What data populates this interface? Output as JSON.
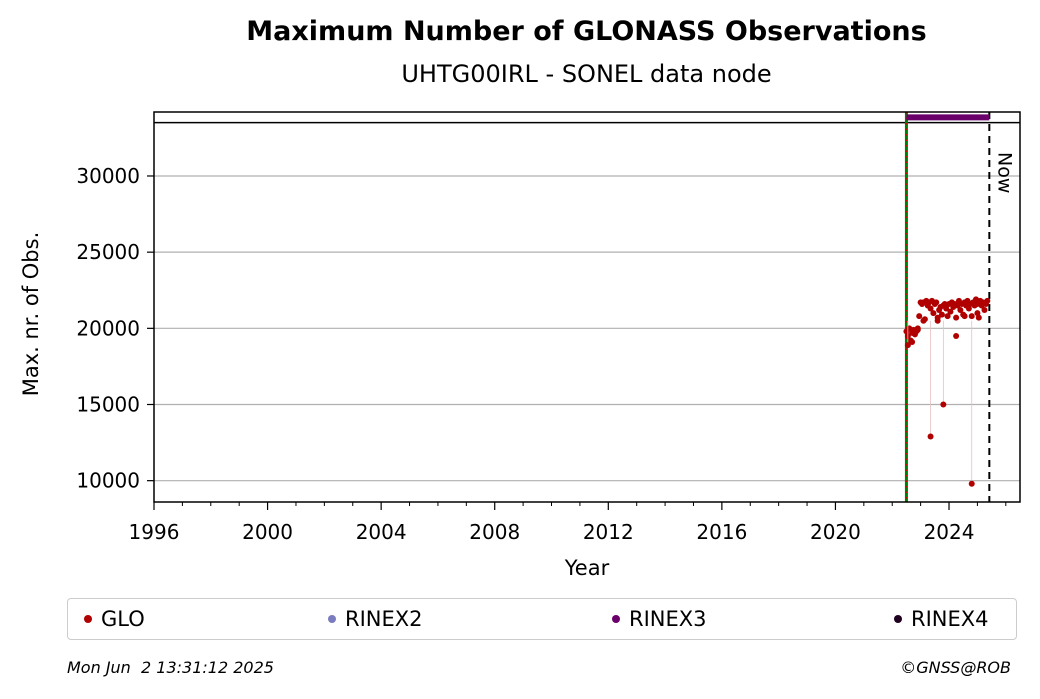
{
  "chart_data": {
    "type": "scatter",
    "title": "Maximum Number of GLONASS Observations",
    "subtitle": "UHTG00IRL - SONEL data node",
    "xlabel": "Year",
    "ylabel": "Max. nr. of Obs.",
    "xlim": [
      1996,
      2026.5
    ],
    "ylim": [
      8600,
      34200
    ],
    "xticks": [
      1996,
      2000,
      2004,
      2008,
      2012,
      2016,
      2020,
      2024
    ],
    "xtick_labels": [
      "1996",
      "2000",
      "2004",
      "2008",
      "2012",
      "2016",
      "2020",
      "2024"
    ],
    "yticks": [
      10000,
      15000,
      20000,
      25000,
      30000
    ],
    "ytick_labels": [
      "10000",
      "15000",
      "20000",
      "25000",
      "30000"
    ],
    "grid": "horizontal",
    "now_label": "Now",
    "now_x": 2025.42,
    "start_line_x": 2022.5,
    "top_band": {
      "y": 33850,
      "boundary_y": 33500
    },
    "series": [
      {
        "name": "GLO",
        "color": "#b00000",
        "x": [
          2022.5,
          2022.55,
          2022.6,
          2022.65,
          2022.7,
          2022.75,
          2022.8,
          2022.85,
          2022.9,
          2022.95,
          2023.0,
          2023.05,
          2023.1,
          2023.15,
          2023.2,
          2023.25,
          2023.3,
          2023.35,
          2023.4,
          2023.45,
          2023.5,
          2023.55,
          2023.6,
          2023.65,
          2023.7,
          2023.75,
          2023.8,
          2023.85,
          2023.9,
          2023.95,
          2024.0,
          2024.05,
          2024.1,
          2024.15,
          2024.2,
          2024.25,
          2024.3,
          2024.35,
          2024.4,
          2024.45,
          2024.5,
          2024.55,
          2024.6,
          2024.65,
          2024.7,
          2024.75,
          2024.8,
          2024.85,
          2024.9,
          2024.95,
          2025.0,
          2025.05,
          2025.1,
          2025.15,
          2025.2,
          2025.25,
          2025.3,
          2025.35,
          2023.35,
          2023.8,
          2024.25,
          2024.8,
          2022.55,
          2022.7,
          2022.9,
          2023.1,
          2023.6,
          2024.55,
          2025.0
        ],
        "y": [
          19800,
          19500,
          20000,
          19200,
          19700,
          19900,
          19600,
          19800,
          20000,
          20800,
          21700,
          21600,
          21700,
          20600,
          21800,
          21500,
          21700,
          21300,
          21800,
          21000,
          21600,
          21700,
          20700,
          21200,
          21400,
          20900,
          21500,
          21600,
          21300,
          20800,
          21600,
          21100,
          21700,
          21400,
          21600,
          20700,
          21500,
          21800,
          21200,
          21600,
          20900,
          21700,
          21500,
          21800,
          21300,
          21600,
          20800,
          21700,
          21500,
          21900,
          21600,
          20700,
          21800,
          21500,
          21700,
          21200,
          21600,
          21800,
          12900,
          15000,
          19500,
          9800,
          18900,
          19100,
          19900,
          20500,
          20500,
          20800,
          21000
        ]
      },
      {
        "name": "RINEX2",
        "color": "#7b7bbf",
        "x": [],
        "y": []
      },
      {
        "name": "RINEX3",
        "color": "#6a006a",
        "x": [
          2022.5,
          2025.42
        ],
        "y": [
          33850,
          33850
        ]
      },
      {
        "name": "RINEX4",
        "color": "#200020",
        "x": [],
        "y": []
      }
    ]
  },
  "legend": {
    "items": [
      {
        "label": "GLO",
        "color": "#b00000"
      },
      {
        "label": "RINEX2",
        "color": "#7b7bbf"
      },
      {
        "label": "RINEX3",
        "color": "#6a006a"
      },
      {
        "label": "RINEX4",
        "color": "#200020"
      }
    ]
  },
  "footer": {
    "timestamp": "Mon Jun  2 13:31:12 2025",
    "credit": "©GNSS@ROB"
  }
}
